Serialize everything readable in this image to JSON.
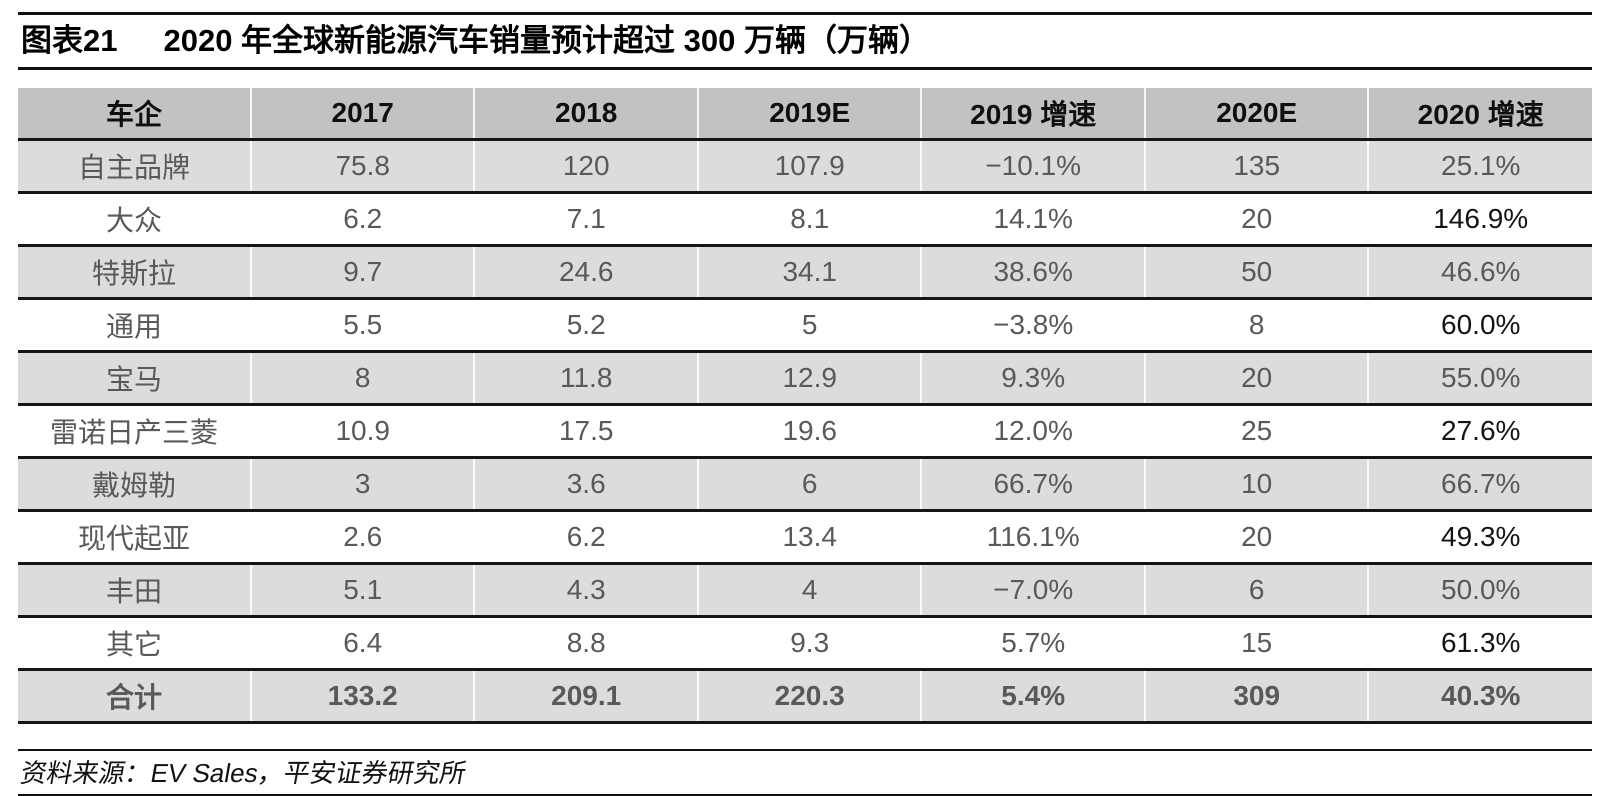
{
  "figure": {
    "label": "图表21",
    "title": "2020 年全球新能源汽车销量预计超过 300 万辆（万辆）"
  },
  "table": {
    "columns": [
      "车企",
      "2017",
      "2018",
      "2019E",
      "2019 增速",
      "2020E",
      "2020 增速"
    ],
    "rows": [
      {
        "name": "自主品牌",
        "values": [
          "75.8",
          "120",
          "107.9",
          "−10.1%",
          "135",
          "25.1%"
        ],
        "shaded": true,
        "total": false
      },
      {
        "name": "大众",
        "values": [
          "6.2",
          "7.1",
          "8.1",
          "14.1%",
          "20",
          "146.9%"
        ],
        "shaded": false,
        "total": false
      },
      {
        "name": "特斯拉",
        "values": [
          "9.7",
          "24.6",
          "34.1",
          "38.6%",
          "50",
          "46.6%"
        ],
        "shaded": true,
        "total": false
      },
      {
        "name": "通用",
        "values": [
          "5.5",
          "5.2",
          "5",
          "−3.8%",
          "8",
          "60.0%"
        ],
        "shaded": false,
        "total": false
      },
      {
        "name": "宝马",
        "values": [
          "8",
          "11.8",
          "12.9",
          "9.3%",
          "20",
          "55.0%"
        ],
        "shaded": true,
        "total": false
      },
      {
        "name": "雷诺日产三菱",
        "values": [
          "10.9",
          "17.5",
          "19.6",
          "12.0%",
          "25",
          "27.6%"
        ],
        "shaded": false,
        "total": false
      },
      {
        "name": "戴姆勒",
        "values": [
          "3",
          "3.6",
          "6",
          "66.7%",
          "10",
          "66.7%"
        ],
        "shaded": true,
        "total": false
      },
      {
        "name": "现代起亚",
        "values": [
          "2.6",
          "6.2",
          "13.4",
          "116.1%",
          "20",
          "49.3%"
        ],
        "shaded": false,
        "total": false
      },
      {
        "name": "丰田",
        "values": [
          "5.1",
          "4.3",
          "4",
          "−7.0%",
          "6",
          "50.0%"
        ],
        "shaded": true,
        "total": false
      },
      {
        "name": "其它",
        "values": [
          "6.4",
          "8.8",
          "9.3",
          "5.7%",
          "15",
          "61.3%"
        ],
        "shaded": false,
        "total": false
      },
      {
        "name": "合计",
        "values": [
          "133.2",
          "209.1",
          "220.3",
          "5.4%",
          "309",
          "40.3%"
        ],
        "shaded": true,
        "total": true
      }
    ]
  },
  "footer": {
    "source": "资料来源：EV Sales，平安证券研究所"
  },
  "colors": {
    "header_bg": "#c2c2c2",
    "shaded_row_bg": "#dcdcdc",
    "body_text_gray": "#595959",
    "emphasis_text": "#141414",
    "rule_black": "#101010"
  }
}
